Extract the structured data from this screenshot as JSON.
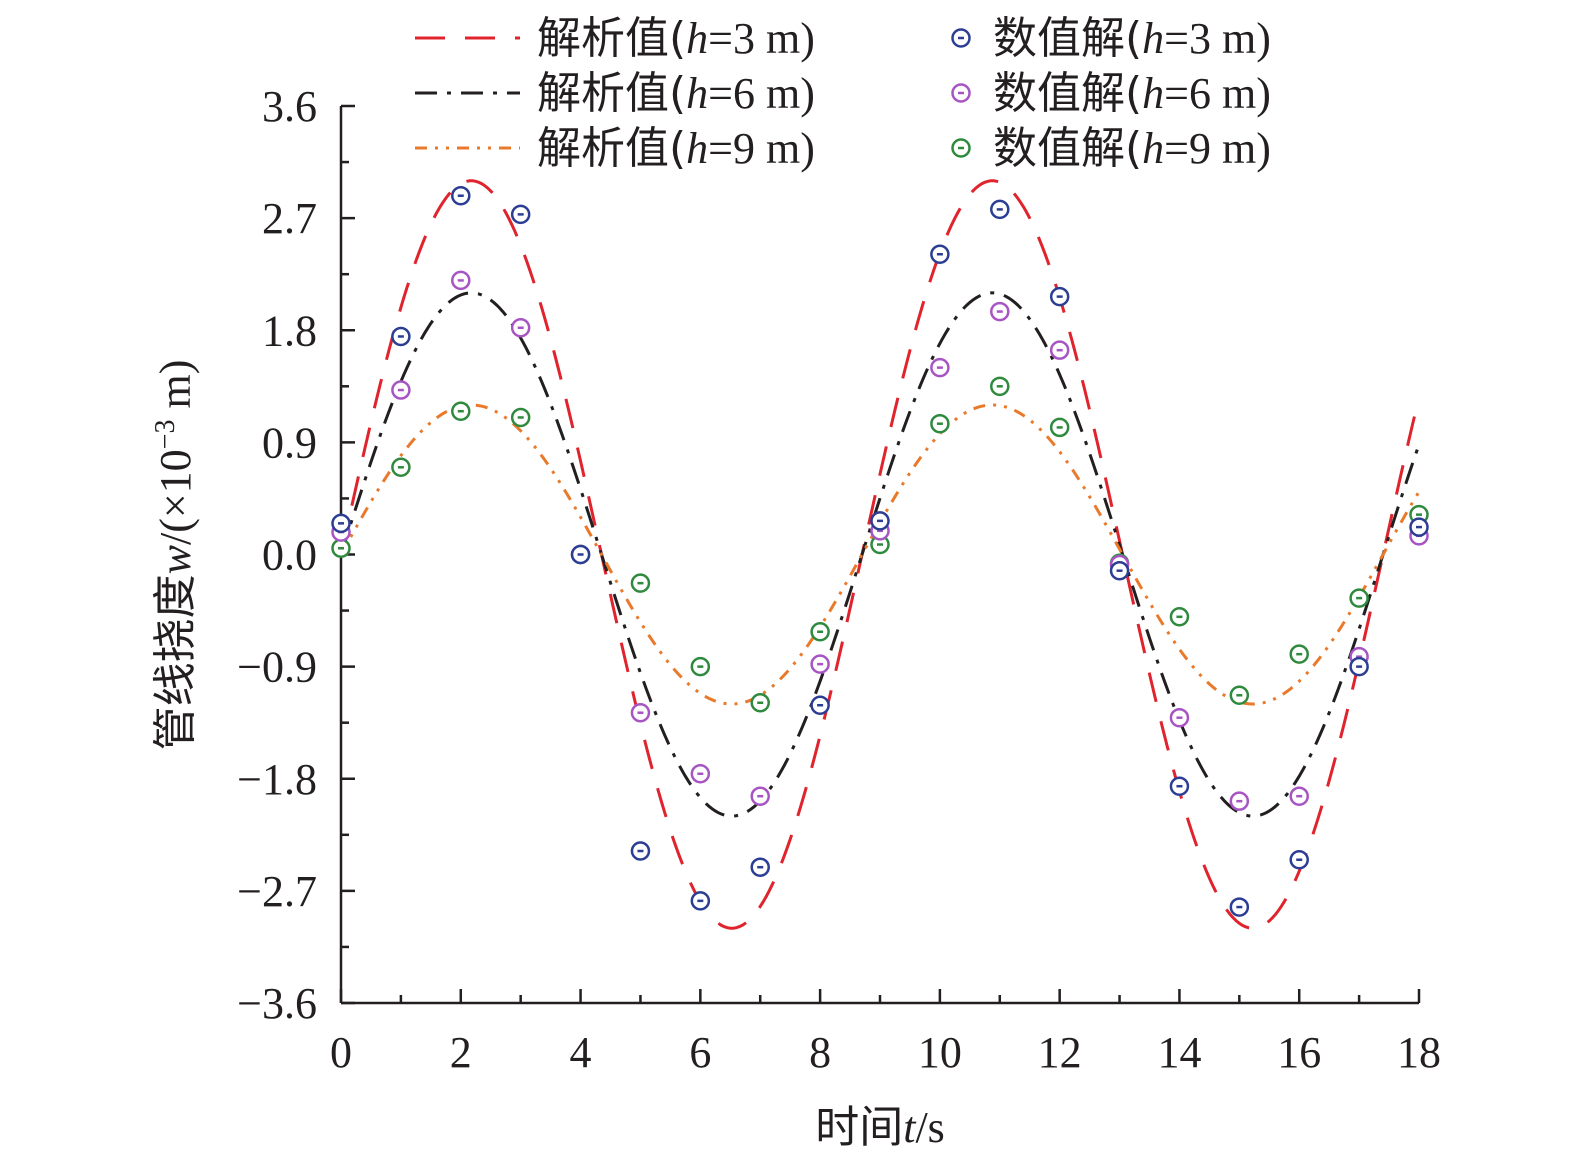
{
  "chart_data": {
    "type": "line",
    "xlabel": {
      "prefix": "时间",
      "var": "t",
      "unit": "/s"
    },
    "ylabel": {
      "prefix": "管线挠度",
      "var": "w",
      "unit": "/(×10",
      "exp": "−3",
      "tail": " m)"
    },
    "xlim": [
      0,
      18
    ],
    "ylim": [
      -3.6,
      3.6
    ],
    "xticks": [
      0,
      2,
      4,
      6,
      8,
      10,
      12,
      14,
      16,
      18
    ],
    "xtick_labels": [
      "0",
      "2",
      "4",
      "6",
      "8",
      "10",
      "12",
      "14",
      "16",
      "18"
    ],
    "yticks": [
      3.6,
      2.7,
      1.8,
      0.9,
      0.0,
      -0.9,
      -1.8,
      -2.7,
      -3.6
    ],
    "ytick_labels": [
      "3.6",
      "2.7",
      "1.8",
      "0.9",
      "0.0",
      "−0.9",
      "−1.8",
      "−2.7",
      "−3.6"
    ],
    "x_time": [
      0,
      1,
      2,
      3,
      4,
      5,
      6,
      7,
      8,
      9,
      10,
      11,
      12,
      13,
      14,
      15,
      16,
      17,
      18
    ],
    "analytic": [
      {
        "name": "解析值(h=3 m)",
        "label_pre": "解析值(",
        "label_var": "h",
        "label_post": "=3 m)",
        "color": "#e0242d",
        "dash": "30,20",
        "period": 8.7,
        "amplitude": 3.0,
        "phase": 0.0
      },
      {
        "name": "解析值(h=6 m)",
        "label_pre": "解析值(",
        "label_var": "h",
        "label_post": "=6 m)",
        "color": "#231f20",
        "dash": "22,10,4,10",
        "period": 8.7,
        "amplitude": 2.1,
        "phase": 0.0
      },
      {
        "name": "解析值(h=9 m)",
        "label_pre": "解析值(",
        "label_var": "h",
        "label_post": "=9 m)",
        "color": "#e97a2c",
        "dash": "12,8,3,8,3,8",
        "period": 8.7,
        "amplitude": 1.2,
        "phase": 0.0
      }
    ],
    "numerical": [
      {
        "name": "数值解(h=3 m)",
        "label_pre": "数值解(",
        "label_var": "h",
        "label_post": "=3 m)",
        "color": "#2b3e94",
        "values": [
          0.25,
          1.75,
          2.88,
          2.73,
          0.0,
          -2.38,
          -2.78,
          -2.51,
          -1.21,
          0.27,
          2.41,
          2.77,
          2.07,
          -0.13,
          -1.86,
          -2.83,
          -2.45,
          -0.9,
          0.22
        ]
      },
      {
        "name": "数值解(h=6 m)",
        "label_pre": "数值解(",
        "label_var": "h",
        "label_post": "=6 m)",
        "color": "#a855c4",
        "values": [
          0.18,
          1.32,
          2.2,
          1.82,
          0.0,
          -1.27,
          -1.76,
          -1.94,
          -0.88,
          0.19,
          1.5,
          1.95,
          1.64,
          -0.08,
          -1.31,
          -1.98,
          -1.94,
          -0.82,
          0.15
        ]
      },
      {
        "name": "数值解(h=9 m)",
        "label_pre": "数值解(",
        "label_var": "h",
        "label_post": "=9 m)",
        "color": "#2f8a3e",
        "values": [
          0.05,
          0.7,
          1.15,
          1.1,
          0.0,
          -0.23,
          -0.9,
          -1.19,
          -0.62,
          0.08,
          1.05,
          1.35,
          1.02,
          -0.07,
          -0.5,
          -1.13,
          -0.8,
          -0.35,
          0.32
        ]
      }
    ]
  }
}
